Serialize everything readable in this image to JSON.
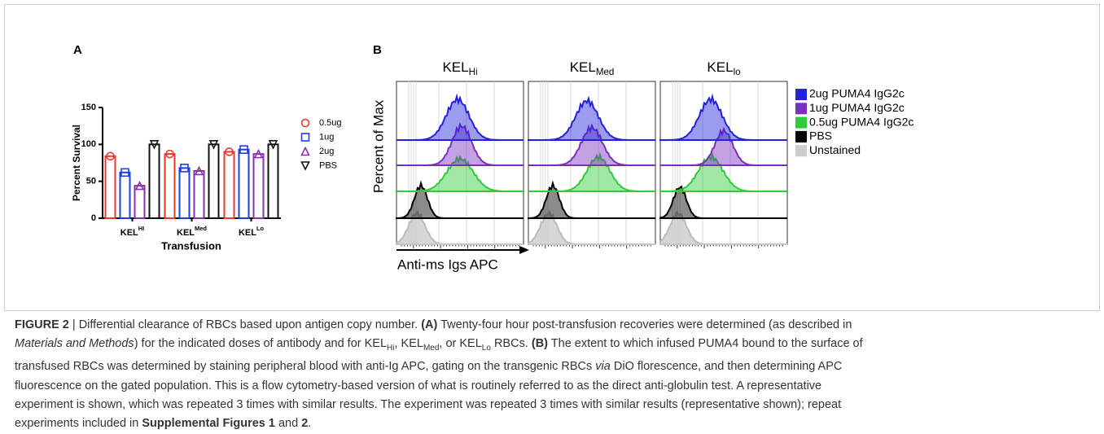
{
  "chart_data": [
    {
      "type": "bar",
      "panel_label": "A",
      "y_label": "Percent Survival",
      "x_label": "Transfusion",
      "categories": [
        {
          "base": "KEL",
          "sup": "HI"
        },
        {
          "base": "KEL",
          "sup": "Med"
        },
        {
          "base": "KEL",
          "sup": "Lo"
        }
      ],
      "series": [
        {
          "name": "0.5ug",
          "color": "#e8392b",
          "marker": "circle",
          "values": [
            84,
            87,
            90
          ]
        },
        {
          "name": "1ug",
          "color": "#1f3fe0",
          "marker": "square",
          "values": [
            62,
            68,
            93
          ]
        },
        {
          "name": "2ug",
          "color": "#8a2fb0",
          "marker": "triangle",
          "values": [
            44,
            64,
            87
          ]
        },
        {
          "name": "PBS",
          "color": "#111111",
          "marker": "triangle-down",
          "values": [
            100,
            100,
            100
          ]
        }
      ],
      "ylim": [
        0,
        150
      ],
      "yticks": [
        0,
        50,
        100,
        150
      ]
    },
    {
      "type": "flow-histogram",
      "panel_label": "B",
      "y_label": "Percent of Max",
      "x_label": "Anti-ms Igs APC",
      "panels": [
        {
          "base": "KEL",
          "sub": "Hi"
        },
        {
          "base": "KEL",
          "sub": "Med"
        },
        {
          "base": "KEL",
          "sub": "lo"
        }
      ],
      "series": [
        {
          "name": "2ug PUMA4 IgG2c",
          "color": "#2222dd"
        },
        {
          "name": "1ug PUMA4 IgG2c",
          "color": "#7a2fc0"
        },
        {
          "name": "0.5ug PUMA4 IgG2c",
          "color": "#2ecc3a"
        },
        {
          "name": "PBS",
          "color": "#000000"
        },
        {
          "name": "Unstained",
          "color": "#cccccc"
        }
      ]
    }
  ],
  "caption": {
    "lines": [
      [
        {
          "text": "FIGURE 2",
          "style": "b"
        },
        {
          "text": " | Differential clearance of RBCs based upon antigen copy number. "
        },
        {
          "text": "(A)",
          "style": "b"
        },
        {
          "text": " Twenty-four hour post-transfusion recoveries were determined (as described in"
        }
      ],
      [
        {
          "text": "Materials and Methods",
          "style": "i"
        },
        {
          "text": ") for the indicated doses of antibody and for KEL"
        },
        {
          "text": "Hi",
          "style": "sub"
        },
        {
          "text": ", KEL"
        },
        {
          "text": "Med",
          "style": "sub"
        },
        {
          "text": ", or KEL"
        },
        {
          "text": "Lo",
          "style": "sub"
        },
        {
          "text": " RBCs. "
        },
        {
          "text": "(B)",
          "style": "b"
        },
        {
          "text": " The extent to which infused PUMA4 bound to the surface of"
        }
      ],
      [
        {
          "text": "transfused RBCs was determined by staining peripheral blood with anti-Ig APC, gating on the transgenic RBCs "
        },
        {
          "text": "via",
          "style": "i"
        },
        {
          "text": " DiO florescence, and then determining APC"
        }
      ],
      [
        {
          "text": "fluorescence on the gated population. This is a flow cytometry-based version of what is routinely referred to as the direct anti-globulin test. A representative"
        }
      ],
      [
        {
          "text": "experiment is shown, which was repeated 3 times with similar results. The experiment was repeated 3 times with similar results (representative shown); repeat"
        }
      ],
      [
        {
          "text": "experiments included in "
        },
        {
          "text": "Supplemental Figures 1",
          "style": "b"
        },
        {
          "text": " and "
        },
        {
          "text": "2",
          "style": "b"
        },
        {
          "text": "."
        }
      ]
    ]
  }
}
